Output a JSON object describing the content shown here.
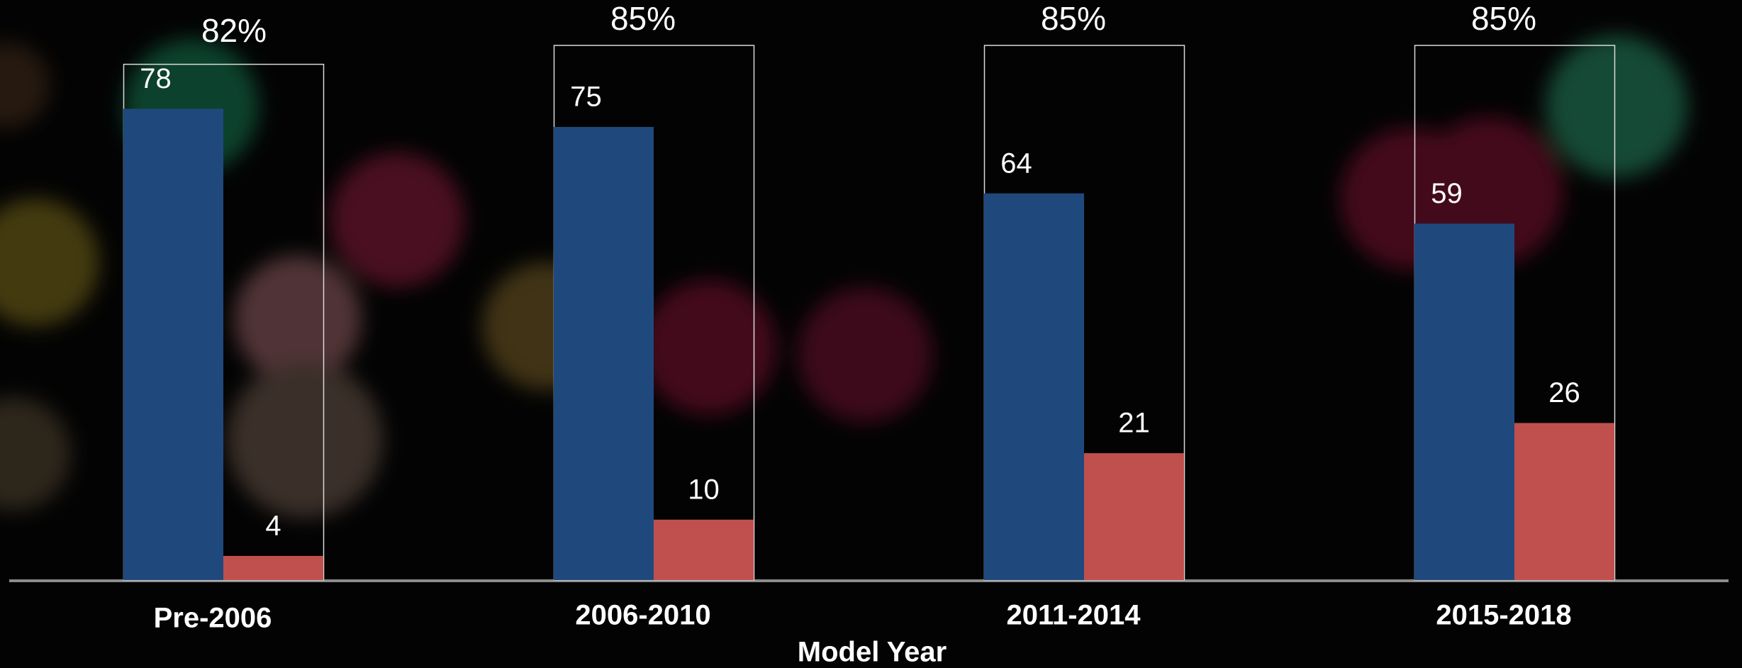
{
  "chart_data": {
    "type": "bar",
    "categories": [
      "Pre-2006",
      "2006-2010",
      "2011-2014",
      "2015-2018"
    ],
    "x_label": "Model Year",
    "series": [
      {
        "color": "#1f497d",
        "values": [
          78,
          75,
          64,
          59
        ]
      },
      {
        "color": "#c0504d",
        "values": [
          4,
          10,
          21,
          26
        ]
      }
    ],
    "totals": {
      "values": [
        82,
        85,
        85,
        85
      ],
      "value_labels": [
        "82%",
        "85%",
        "85%",
        "85%"
      ]
    }
  }
}
